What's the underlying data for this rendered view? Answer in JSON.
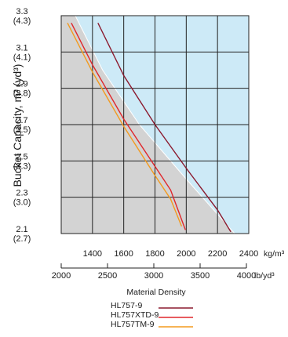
{
  "chart_data": {
    "type": "line",
    "title": "",
    "ylabel": "Bucket Capacity, m³ (yd³)",
    "xlabel": "Material Density",
    "x_unit_primary": "kg/m³",
    "x_unit_secondary": "lb/yd³",
    "xlim": [
      1200,
      2400
    ],
    "ylim": [
      2.1,
      3.3
    ],
    "grid": true,
    "y_ticks": [
      {
        "value": 2.1,
        "m3": "2.1",
        "yd3": "(2.7)"
      },
      {
        "value": 2.3,
        "m3": "2.3",
        "yd3": "(3.0)"
      },
      {
        "value": 2.5,
        "m3": "2.5",
        "yd3": "(3.3)"
      },
      {
        "value": 2.7,
        "m3": "2.7",
        "yd3": "(3.5)"
      },
      {
        "value": 2.9,
        "m3": "2.9",
        "yd3": "(3.8)"
      },
      {
        "value": 3.1,
        "m3": "3.1",
        "yd3": "(4.1)"
      },
      {
        "value": 3.3,
        "m3": "3.3",
        "yd3": "(4.3)"
      }
    ],
    "x_ticks_primary": [
      {
        "value": 1400,
        "label": "1400"
      },
      {
        "value": 1600,
        "label": "1600"
      },
      {
        "value": 1800,
        "label": "1800"
      },
      {
        "value": 2000,
        "label": "2000"
      },
      {
        "value": 2200,
        "label": "2200"
      },
      {
        "value": 2400,
        "label": "2400"
      }
    ],
    "x_ticks_secondary": [
      {
        "value": 2000,
        "label": "2000"
      },
      {
        "value": 2500,
        "label": "2500"
      },
      {
        "value": 3000,
        "label": "3000"
      },
      {
        "value": 3500,
        "label": "3500"
      },
      {
        "value": 4000,
        "label": "4000"
      }
    ],
    "series": [
      {
        "name": "HL757-9",
        "color": "#8b1a2e",
        "x": [
          1435,
          1600,
          1800,
          2000,
          2200,
          2285
        ],
        "y": [
          3.26,
          2.97,
          2.7,
          2.46,
          2.23,
          2.11
        ]
      },
      {
        "name": "HL757XTD-9",
        "color": "#e0262b",
        "x": [
          1265,
          1400,
          1600,
          1800,
          1900,
          1995
        ],
        "y": [
          3.26,
          3.03,
          2.73,
          2.47,
          2.34,
          2.12
        ]
      },
      {
        "name": "HL757TM-9",
        "color": "#f39a1e",
        "x": [
          1240,
          1400,
          1600,
          1800,
          1900,
          1970
        ],
        "y": [
          3.26,
          2.99,
          2.69,
          2.42,
          2.29,
          2.14
        ]
      }
    ],
    "regions": {
      "upper_fill": "#cdeaf7",
      "lower_fill": "#d3d3d3",
      "boundary_color": "#ffffff",
      "boundary_x": [
        1290,
        1465,
        1700,
        2000,
        2310
      ],
      "boundary_y": [
        3.3,
        3.0,
        2.7,
        2.4,
        2.1
      ]
    },
    "legend_position": "bottom-center"
  }
}
